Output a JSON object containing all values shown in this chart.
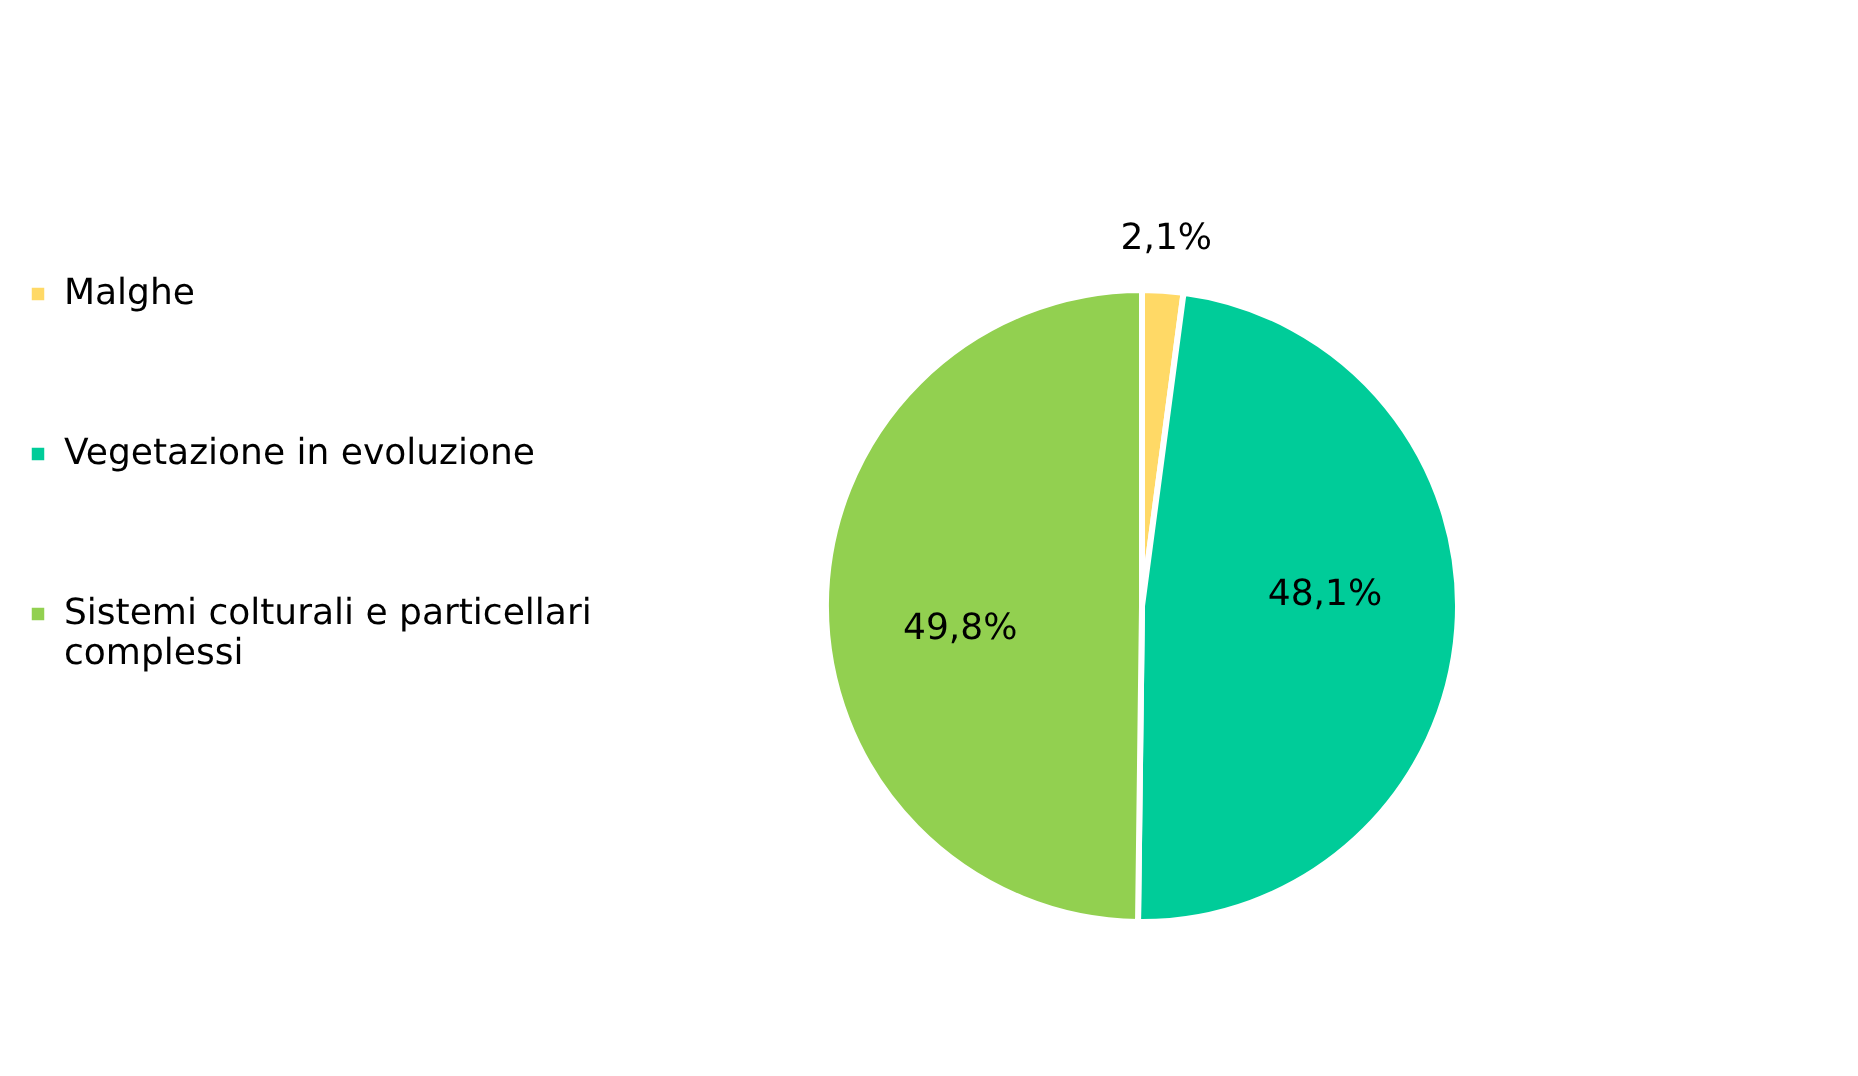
{
  "chart_data": {
    "type": "pie",
    "categories": [
      "Malghe",
      "Vegetazione in evoluzione",
      "Sistemi colturali e particellari complessi"
    ],
    "values": [
      2.1,
      48.1,
      49.8
    ],
    "colors": [
      "#ffd966",
      "#00cc99",
      "#92d050"
    ],
    "value_labels": [
      "2,1%",
      "48,1%",
      "49,8%"
    ],
    "legend": "left"
  }
}
